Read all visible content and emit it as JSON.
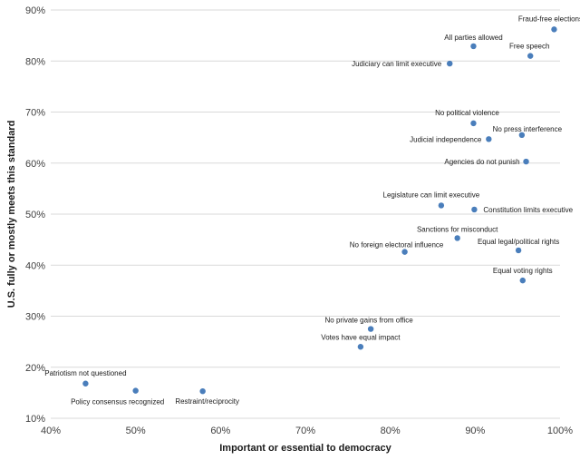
{
  "chart_data": {
    "type": "scatter",
    "xlabel": "Important or essential to democracy",
    "ylabel": "U.S. fully or mostly meets this standard",
    "xlim": [
      40,
      100
    ],
    "ylim": [
      10,
      90
    ],
    "x_ticks": [
      "40%",
      "50%",
      "60%",
      "70%",
      "80%",
      "90%",
      "100%"
    ],
    "y_ticks": [
      "10%",
      "20%",
      "30%",
      "40%",
      "50%",
      "60%",
      "70%",
      "80%",
      "90%"
    ],
    "grid": "horizontal",
    "point_color": "#4a7ebb",
    "points": [
      {
        "label": "Fraud-free elections",
        "x": 99.3,
        "y": 86.2
      },
      {
        "label": "All parties allowed",
        "x": 89.8,
        "y": 82.9
      },
      {
        "label": "Free speech",
        "x": 96.5,
        "y": 81.0
      },
      {
        "label": "Judiciary can limit executive",
        "x": 87.0,
        "y": 79.5
      },
      {
        "label": "No political violence",
        "x": 89.8,
        "y": 67.8
      },
      {
        "label": "No press interference",
        "x": 95.5,
        "y": 65.5
      },
      {
        "label": "Judicial independence",
        "x": 91.6,
        "y": 64.7
      },
      {
        "label": "Agencies do not punish",
        "x": 96.0,
        "y": 60.3
      },
      {
        "label": "Legislature can limit executive",
        "x": 86.0,
        "y": 51.7
      },
      {
        "label": "Constitution limits executive",
        "x": 89.9,
        "y": 50.9
      },
      {
        "label": "Sanctions for misconduct",
        "x": 87.9,
        "y": 45.3
      },
      {
        "label": "Equal legal/political rights",
        "x": 95.1,
        "y": 42.9
      },
      {
        "label": "No foreign electoral influence",
        "x": 81.7,
        "y": 42.6
      },
      {
        "label": "Equal voting rights",
        "x": 95.6,
        "y": 37.0
      },
      {
        "label": "No private gains from office",
        "x": 77.7,
        "y": 27.5
      },
      {
        "label": "Votes have equal impact",
        "x": 76.5,
        "y": 24.0
      },
      {
        "label": "Patriotism not questioned",
        "x": 44.1,
        "y": 16.8
      },
      {
        "label": "Policy consensus recognized",
        "x": 50.0,
        "y": 15.4
      },
      {
        "label": "Restraint/reciprocity",
        "x": 57.9,
        "y": 15.3
      }
    ]
  }
}
